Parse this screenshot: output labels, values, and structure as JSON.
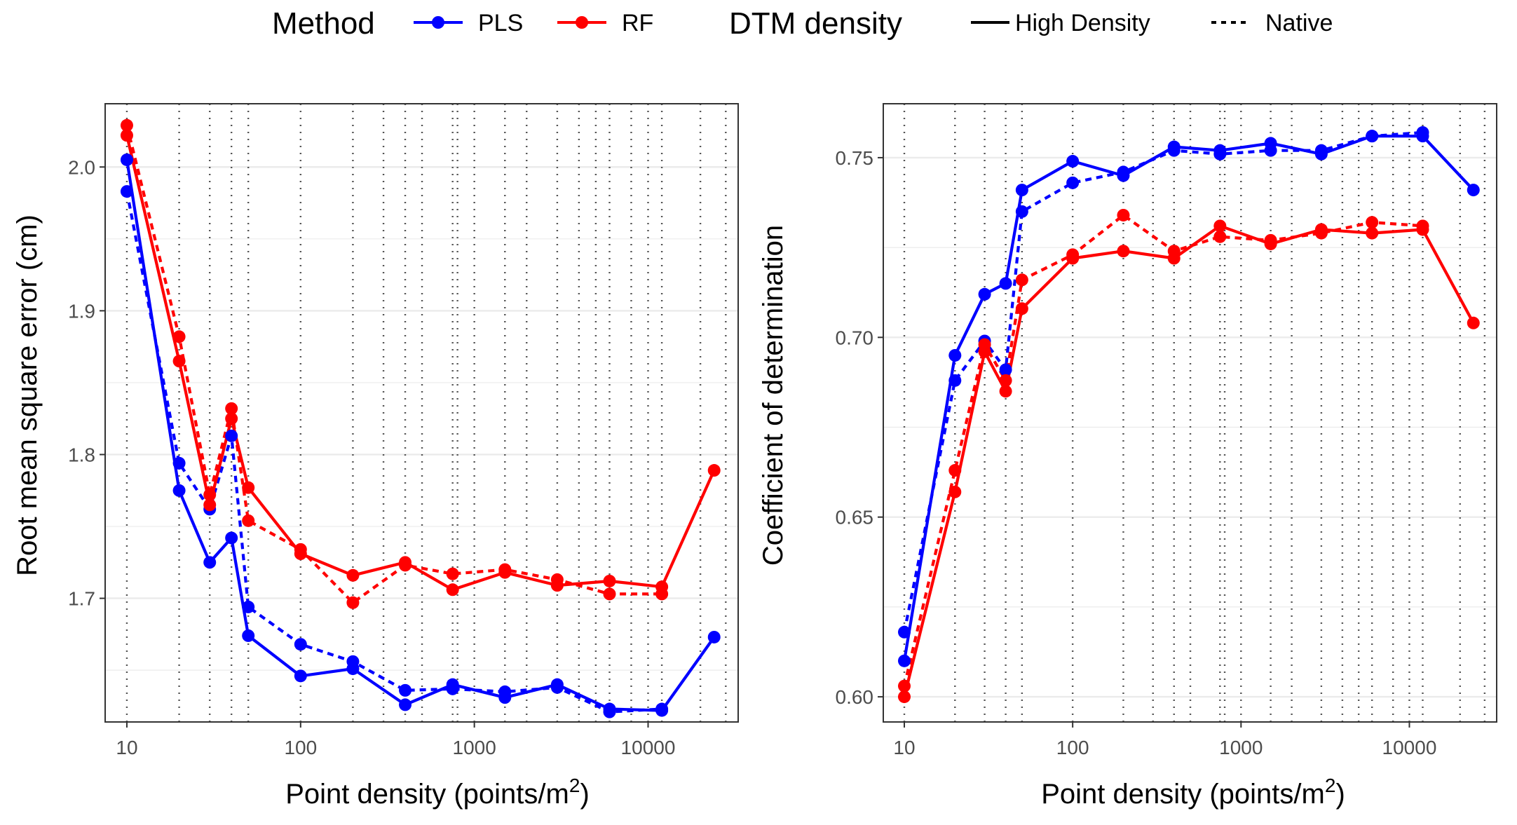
{
  "legend": {
    "method_title": "Method",
    "method_items": [
      {
        "label": "PLS",
        "color": "#0000ff"
      },
      {
        "label": "RF",
        "color": "#ff0000"
      }
    ],
    "dtm_title": "DTM density",
    "dtm_items": [
      {
        "label": "High Density",
        "line": "solid"
      },
      {
        "label": "Native",
        "line": "dashed"
      }
    ]
  },
  "chart_data": [
    {
      "type": "line",
      "xlabel": "Point density (points/m",
      "xlabel_sup": "2",
      "xlabel_close": ")",
      "ylabel": "Root mean square error (cm)",
      "x_scale": "log10",
      "xlim": [
        7.5,
        33000
      ],
      "ylim": [
        1.614,
        2.044
      ],
      "x_ticks": [
        10,
        100,
        1000,
        10000
      ],
      "x_tick_labels": [
        "10",
        "100",
        "1000",
        "10000"
      ],
      "y_ticks": [
        1.7,
        1.8,
        1.9,
        2.0
      ],
      "y_tick_labels": [
        "1.7",
        "1.8",
        "1.9",
        "2.0"
      ],
      "vlines": [
        10,
        20,
        30,
        40,
        50,
        100,
        200,
        300,
        400,
        500,
        750,
        800,
        1000,
        1500,
        2000,
        3000,
        4000,
        5000,
        6000,
        8000,
        10000,
        12000,
        20000,
        28000
      ],
      "series": [
        {
          "method": "PLS",
          "dtm": "High Density",
          "color": "#0000ff",
          "dash": "solid",
          "x": [
            10,
            20,
            30,
            40,
            50,
            100,
            200,
            400,
            750,
            1500,
            3000,
            6000,
            12000,
            24000
          ],
          "y": [
            2.005,
            1.775,
            1.725,
            1.742,
            1.674,
            1.646,
            1.651,
            1.626,
            1.64,
            1.631,
            1.64,
            1.623,
            1.622,
            1.673
          ]
        },
        {
          "method": "PLS",
          "dtm": "Native",
          "color": "#0000ff",
          "dash": "dashed",
          "x": [
            10,
            20,
            30,
            40,
            50,
            100,
            200,
            400,
            750,
            1500,
            3000,
            6000,
            12000
          ],
          "y": [
            1.983,
            1.794,
            1.762,
            1.813,
            1.694,
            1.668,
            1.656,
            1.636,
            1.637,
            1.635,
            1.638,
            1.621,
            1.623
          ]
        },
        {
          "method": "RF",
          "dtm": "High Density",
          "color": "#ff0000",
          "dash": "solid",
          "x": [
            10,
            20,
            30,
            40,
            50,
            100,
            200,
            400,
            750,
            1500,
            3000,
            6000,
            12000,
            24000
          ],
          "y": [
            2.022,
            1.865,
            1.765,
            1.825,
            1.777,
            1.731,
            1.716,
            1.725,
            1.706,
            1.718,
            1.709,
            1.712,
            1.708,
            1.789
          ]
        },
        {
          "method": "RF",
          "dtm": "Native",
          "color": "#ff0000",
          "dash": "dashed",
          "x": [
            10,
            20,
            30,
            40,
            50,
            100,
            200,
            400,
            750,
            1500,
            3000,
            6000,
            12000
          ],
          "y": [
            2.029,
            1.882,
            1.772,
            1.832,
            1.754,
            1.734,
            1.697,
            1.723,
            1.717,
            1.72,
            1.713,
            1.703,
            1.703
          ]
        }
      ]
    },
    {
      "type": "line",
      "xlabel": "Point density (points/m",
      "xlabel_sup": "2",
      "xlabel_close": ")",
      "ylabel": "Coefficient of determination",
      "x_scale": "log10",
      "xlim": [
        7.5,
        33000
      ],
      "ylim": [
        0.593,
        0.765
      ],
      "x_ticks": [
        10,
        100,
        1000,
        10000
      ],
      "x_tick_labels": [
        "10",
        "100",
        "1000",
        "10000"
      ],
      "y_ticks": [
        0.6,
        0.65,
        0.7,
        0.75
      ],
      "y_tick_labels": [
        "0.60",
        "0.65",
        "0.70",
        "0.75"
      ],
      "vlines": [
        10,
        20,
        30,
        40,
        50,
        100,
        200,
        300,
        400,
        500,
        750,
        800,
        1000,
        1500,
        2000,
        3000,
        4000,
        5000,
        6000,
        8000,
        10000,
        12000,
        20000,
        28000
      ],
      "series": [
        {
          "method": "PLS",
          "dtm": "High Density",
          "color": "#0000ff",
          "dash": "solid",
          "x": [
            10,
            20,
            30,
            40,
            50,
            100,
            200,
            400,
            750,
            1500,
            3000,
            6000,
            12000,
            24000
          ],
          "y": [
            0.61,
            0.695,
            0.712,
            0.715,
            0.741,
            0.749,
            0.745,
            0.753,
            0.752,
            0.754,
            0.751,
            0.756,
            0.756,
            0.741
          ]
        },
        {
          "method": "PLS",
          "dtm": "Native",
          "color": "#0000ff",
          "dash": "dashed",
          "x": [
            10,
            20,
            30,
            40,
            50,
            100,
            200,
            400,
            750,
            1500,
            3000,
            6000,
            12000
          ],
          "y": [
            0.618,
            0.688,
            0.699,
            0.691,
            0.735,
            0.743,
            0.746,
            0.752,
            0.751,
            0.752,
            0.752,
            0.756,
            0.757
          ]
        },
        {
          "method": "RF",
          "dtm": "High Density",
          "color": "#ff0000",
          "dash": "solid",
          "x": [
            10,
            20,
            30,
            40,
            50,
            100,
            200,
            400,
            750,
            1500,
            3000,
            6000,
            12000,
            24000
          ],
          "y": [
            0.6,
            0.657,
            0.696,
            0.685,
            0.708,
            0.722,
            0.724,
            0.722,
            0.731,
            0.726,
            0.73,
            0.729,
            0.73,
            0.704
          ]
        },
        {
          "method": "RF",
          "dtm": "Native",
          "color": "#ff0000",
          "dash": "dashed",
          "x": [
            10,
            20,
            30,
            40,
            50,
            100,
            200,
            400,
            750,
            1500,
            3000,
            6000,
            12000
          ],
          "y": [
            0.603,
            0.663,
            0.698,
            0.688,
            0.716,
            0.723,
            0.734,
            0.724,
            0.728,
            0.727,
            0.729,
            0.732,
            0.731
          ]
        }
      ]
    }
  ]
}
